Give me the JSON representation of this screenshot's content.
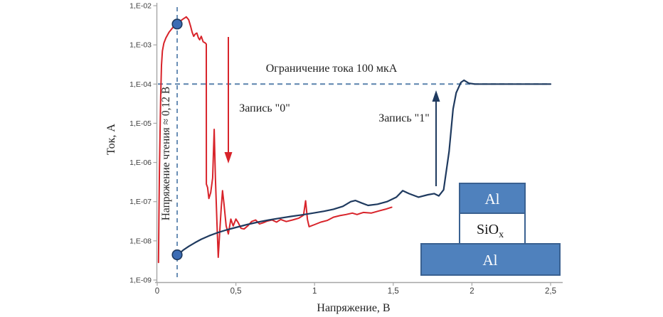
{
  "figure": {
    "y_axis_label": "Ток, А",
    "x_axis_label": "Напряжение, В",
    "y_tick_labels": [
      "1,E-02",
      "1,E-03",
      "1,E-04",
      "1,E-05",
      "1,E-06",
      "1,E-07",
      "1,E-08",
      "1,E-09"
    ],
    "x_tick_labels": [
      "0",
      "0,5",
      "1",
      "1,5",
      "2",
      "2,5"
    ],
    "annotations": {
      "current_limit_label": "Ограничение  тока 100 мкА",
      "write_zero_label": "Запись \"0\"",
      "write_one_label": "Запись \"1\"",
      "read_voltage_label": "Напряжение  чтения ≈ 0,12 В"
    },
    "device_inset": {
      "top_electrode": "Al",
      "oxide_main": "SiO",
      "oxide_subscript": "x",
      "bottom_electrode": "Al"
    },
    "colors": {
      "write_zero_curve": "#d8232a",
      "write_one_curve": "#1f3a5f",
      "dashed_guides": "#5b84ae",
      "marker_fill": "#3c6cb4",
      "marker_stroke": "#1f3a5f",
      "electrode_fill": "#4f81bd",
      "electrode_border": "#3a6191",
      "axis": "#a6a6a6",
      "text": "#1f1f1f"
    }
  },
  "chart_data": {
    "type": "line",
    "title": "",
    "xlabel": "Напряжение, В",
    "ylabel": "Ток, А",
    "grid": false,
    "legend": "none",
    "x_axis": {
      "min": 0,
      "max": 2.5,
      "tick_values": [
        0,
        0.5,
        1,
        1.5,
        2,
        2.5
      ]
    },
    "y_axis": {
      "scale": "log",
      "min": 1e-09,
      "max": 0.01,
      "tick_exponents": [
        -2,
        -3,
        -4,
        -5,
        -6,
        -7,
        -8,
        -9
      ]
    },
    "compliance_current_A": 0.0001,
    "read_voltage_V": 0.12,
    "read_markers": [
      {
        "V": 0.12,
        "I": 0.0034
      },
      {
        "V": 0.12,
        "I": 4.4e-09
      }
    ],
    "series": [
      {
        "name": "Запись \"0\"",
        "role": "reset-sweep",
        "color": "#d8232a",
        "points": [
          [
            0.008,
            2.8e-09
          ],
          [
            0.011,
            4e-08
          ],
          [
            0.014,
            6e-07
          ],
          [
            0.018,
            6e-06
          ],
          [
            0.022,
            5e-05
          ],
          [
            0.027,
            0.0003
          ],
          [
            0.033,
            0.0007
          ],
          [
            0.042,
            0.0011
          ],
          [
            0.055,
            0.0015
          ],
          [
            0.075,
            0.0021
          ],
          [
            0.1,
            0.0028
          ],
          [
            0.127,
            0.0034
          ],
          [
            0.155,
            0.0043
          ],
          [
            0.185,
            0.0052
          ],
          [
            0.2,
            0.0044
          ],
          [
            0.212,
            0.003
          ],
          [
            0.222,
            0.0021
          ],
          [
            0.232,
            0.00165
          ],
          [
            0.242,
            0.0019
          ],
          [
            0.252,
            0.002
          ],
          [
            0.262,
            0.0015
          ],
          [
            0.27,
            0.00135
          ],
          [
            0.28,
            0.00165
          ],
          [
            0.292,
            0.0012
          ],
          [
            0.305,
            0.00112
          ],
          [
            0.312,
            0.00105
          ],
          [
            0.3125,
            2.8e-07
          ],
          [
            0.32,
            2.3e-07
          ],
          [
            0.328,
            1.2e-07
          ],
          [
            0.34,
            1.7e-07
          ],
          [
            0.352,
            4e-07
          ],
          [
            0.362,
            7e-06
          ],
          [
            0.37,
            4e-07
          ],
          [
            0.38,
            2.5e-08
          ],
          [
            0.388,
            3.8e-09
          ],
          [
            0.397,
            1.6e-08
          ],
          [
            0.407,
            7e-08
          ],
          [
            0.415,
            1.9e-07
          ],
          [
            0.424,
            9e-08
          ],
          [
            0.438,
            2.4e-08
          ],
          [
            0.452,
            1.5e-08
          ],
          [
            0.468,
            3.6e-08
          ],
          [
            0.483,
            2.4e-08
          ],
          [
            0.5,
            3.6e-08
          ],
          [
            0.515,
            2.9e-08
          ],
          [
            0.532,
            2.1e-08
          ],
          [
            0.552,
            2e-08
          ],
          [
            0.575,
            2.4e-08
          ],
          [
            0.6,
            3.1e-08
          ],
          [
            0.625,
            3.4e-08
          ],
          [
            0.65,
            2.7e-08
          ],
          [
            0.675,
            2.9e-08
          ],
          [
            0.7,
            3.2e-08
          ],
          [
            0.73,
            3.4e-08
          ],
          [
            0.758,
            3e-08
          ],
          [
            0.785,
            3.5e-08
          ],
          [
            0.82,
            3.1e-08
          ],
          [
            0.86,
            3.4e-08
          ],
          [
            0.9,
            3.8e-08
          ],
          [
            0.93,
            4.5e-08
          ],
          [
            0.943,
            1.05e-07
          ],
          [
            0.955,
            3.5e-08
          ],
          [
            0.965,
            2.3e-08
          ],
          [
            1.0,
            2.6e-08
          ],
          [
            1.04,
            3e-08
          ],
          [
            1.08,
            3.3e-08
          ],
          [
            1.12,
            4e-08
          ],
          [
            1.16,
            4.4e-08
          ],
          [
            1.2,
            4.7e-08
          ],
          [
            1.24,
            5.1e-08
          ],
          [
            1.27,
            4.7e-08
          ],
          [
            1.31,
            5.3e-08
          ],
          [
            1.36,
            5.1e-08
          ],
          [
            1.41,
            5.8e-08
          ],
          [
            1.45,
            6.4e-08
          ],
          [
            1.49,
            7.2e-08
          ]
        ]
      },
      {
        "name": "Запись \"1\"",
        "role": "set-sweep",
        "color": "#1f3a5f",
        "points": [
          [
            0.13,
            4.4e-09
          ],
          [
            0.165,
            5.8e-09
          ],
          [
            0.2,
            7.2e-09
          ],
          [
            0.24,
            9e-09
          ],
          [
            0.28,
            1.1e-08
          ],
          [
            0.33,
            1.35e-08
          ],
          [
            0.38,
            1.6e-08
          ],
          [
            0.44,
            1.9e-08
          ],
          [
            0.5,
            2.2e-08
          ],
          [
            0.57,
            2.6e-08
          ],
          [
            0.64,
            3e-08
          ],
          [
            0.71,
            3.4e-08
          ],
          [
            0.78,
            3.8e-08
          ],
          [
            0.85,
            4.2e-08
          ],
          [
            0.92,
            4.6e-08
          ],
          [
            0.99,
            5.1e-08
          ],
          [
            1.06,
            5.7e-08
          ],
          [
            1.12,
            6.4e-08
          ],
          [
            1.18,
            7.6e-08
          ],
          [
            1.23,
            1e-07
          ],
          [
            1.26,
            1.07e-07
          ],
          [
            1.3,
            9.2e-08
          ],
          [
            1.34,
            8e-08
          ],
          [
            1.4,
            8.6e-08
          ],
          [
            1.46,
            1e-07
          ],
          [
            1.52,
            1.3e-07
          ],
          [
            1.56,
            1.9e-07
          ],
          [
            1.6,
            1.6e-07
          ],
          [
            1.66,
            1.3e-07
          ],
          [
            1.72,
            1.5e-07
          ],
          [
            1.76,
            1.6e-07
          ],
          [
            1.79,
            1.4e-07
          ],
          [
            1.82,
            2e-07
          ],
          [
            1.855,
            1.9e-06
          ],
          [
            1.88,
            2.3e-05
          ],
          [
            1.9,
            6e-05
          ],
          [
            1.93,
            0.00011
          ],
          [
            1.95,
            0.000125
          ],
          [
            1.98,
            0.000105
          ],
          [
            2.02,
            0.0001
          ],
          [
            2.1,
            0.0001
          ],
          [
            2.25,
            0.0001
          ],
          [
            2.5,
            0.0001
          ]
        ]
      }
    ]
  }
}
